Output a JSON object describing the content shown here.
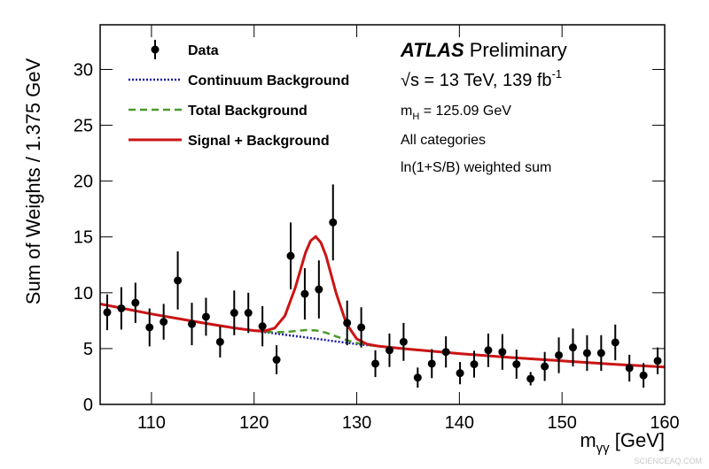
{
  "chart_data": {
    "type": "line",
    "x_label": {
      "main": "m",
      "sub": "γγ",
      "rest": " [GeV]"
    },
    "y_label": "Sum of Weights / 1.375 GeV",
    "xlim": [
      105,
      160
    ],
    "ylim": [
      0,
      34
    ],
    "xticks": [
      110,
      120,
      130,
      140,
      150,
      160
    ],
    "yticks": [
      0,
      5,
      10,
      15,
      20,
      25,
      30
    ],
    "data": {
      "name": "Data",
      "color": "#000000",
      "x": [
        105.6875,
        107.0625,
        108.4375,
        109.8125,
        111.1875,
        112.5625,
        113.9375,
        115.3125,
        116.6875,
        118.0625,
        119.4375,
        120.8125,
        122.1875,
        123.5625,
        124.9375,
        126.3125,
        127.6875,
        129.0625,
        130.4375,
        131.8125,
        133.1875,
        134.5625,
        135.9375,
        137.3125,
        138.6875,
        140.0625,
        141.4375,
        142.8125,
        144.1875,
        145.5625,
        146.9375,
        148.3125,
        149.6875,
        151.0625,
        152.4375,
        153.8125,
        155.1875,
        156.5625,
        157.9375,
        159.3125
      ],
      "values": [
        8.25,
        8.6,
        9.1,
        6.9,
        7.4,
        11.1,
        7.2,
        7.85,
        5.6,
        8.2,
        8.2,
        7.0,
        4.0,
        13.3,
        9.9,
        10.3,
        16.3,
        7.3,
        6.9,
        3.65,
        4.85,
        5.6,
        2.4,
        3.65,
        4.7,
        2.8,
        3.6,
        4.85,
        4.7,
        3.6,
        2.3,
        3.4,
        4.4,
        5.1,
        4.6,
        4.6,
        5.55,
        3.25,
        2.6,
        3.9
      ],
      "errors": [
        1.6,
        1.9,
        1.8,
        1.7,
        1.6,
        2.6,
        1.9,
        1.7,
        1.4,
        2.0,
        1.8,
        1.8,
        1.3,
        3.0,
        2.3,
        2.6,
        3.4,
        2.0,
        1.8,
        1.2,
        1.5,
        1.7,
        0.9,
        1.3,
        1.4,
        1.0,
        1.2,
        1.5,
        1.6,
        1.3,
        0.6,
        1.3,
        1.6,
        1.7,
        1.6,
        1.6,
        1.6,
        1.2,
        1.1,
        1.2
      ]
    },
    "series": [
      {
        "name": "Continuum Background",
        "color": "#1a1aa8",
        "dash": "dotted",
        "x": [
          105,
          110,
          115,
          120,
          125,
          130,
          135,
          140,
          145,
          150,
          155,
          160
        ],
        "values": [
          9.0,
          8.1,
          7.3,
          6.6,
          6.0,
          5.4,
          4.95,
          4.55,
          4.2,
          3.9,
          3.6,
          3.35
        ]
      },
      {
        "name": "Total Background",
        "color": "#4a9a2a",
        "dash": "dashed",
        "x": [
          120,
          121,
          122,
          123,
          124,
          125,
          126,
          127,
          128,
          129,
          130,
          131,
          132
        ],
        "values": [
          6.61,
          6.51,
          6.46,
          6.48,
          6.57,
          6.66,
          6.63,
          6.42,
          6.09,
          5.76,
          5.5,
          5.34,
          5.23
        ]
      },
      {
        "name": "Signal + Background",
        "color": "#cc1414",
        "dash": "solid",
        "x": [
          105,
          110,
          115,
          118,
          119,
          120,
          121,
          122,
          123,
          124,
          125,
          125.5,
          126,
          126.5,
          127,
          128,
          129,
          130,
          131,
          132,
          133,
          135,
          140,
          145,
          150,
          155,
          160
        ],
        "values": [
          9.0,
          8.1,
          7.3,
          6.85,
          6.73,
          6.61,
          6.57,
          6.83,
          7.93,
          10.42,
          13.57,
          14.65,
          15.03,
          14.5,
          13.33,
          9.94,
          7.21,
          5.87,
          5.4,
          5.23,
          5.13,
          4.95,
          4.55,
          4.2,
          3.9,
          3.6,
          3.35
        ]
      }
    ],
    "annotations": {
      "experiment": "ATLAS",
      "status": "Preliminary",
      "energy": "√s = 13 TeV, 139 fb",
      "energy_sup": "-1",
      "mass_main": "m",
      "mass_sub": "H",
      "mass_rest": " = 125.09 GeV",
      "categories": "All categories",
      "weighting": "ln(1+S/B) weighted sum",
      "watermark": "SCIENCEAQ.COM"
    }
  }
}
